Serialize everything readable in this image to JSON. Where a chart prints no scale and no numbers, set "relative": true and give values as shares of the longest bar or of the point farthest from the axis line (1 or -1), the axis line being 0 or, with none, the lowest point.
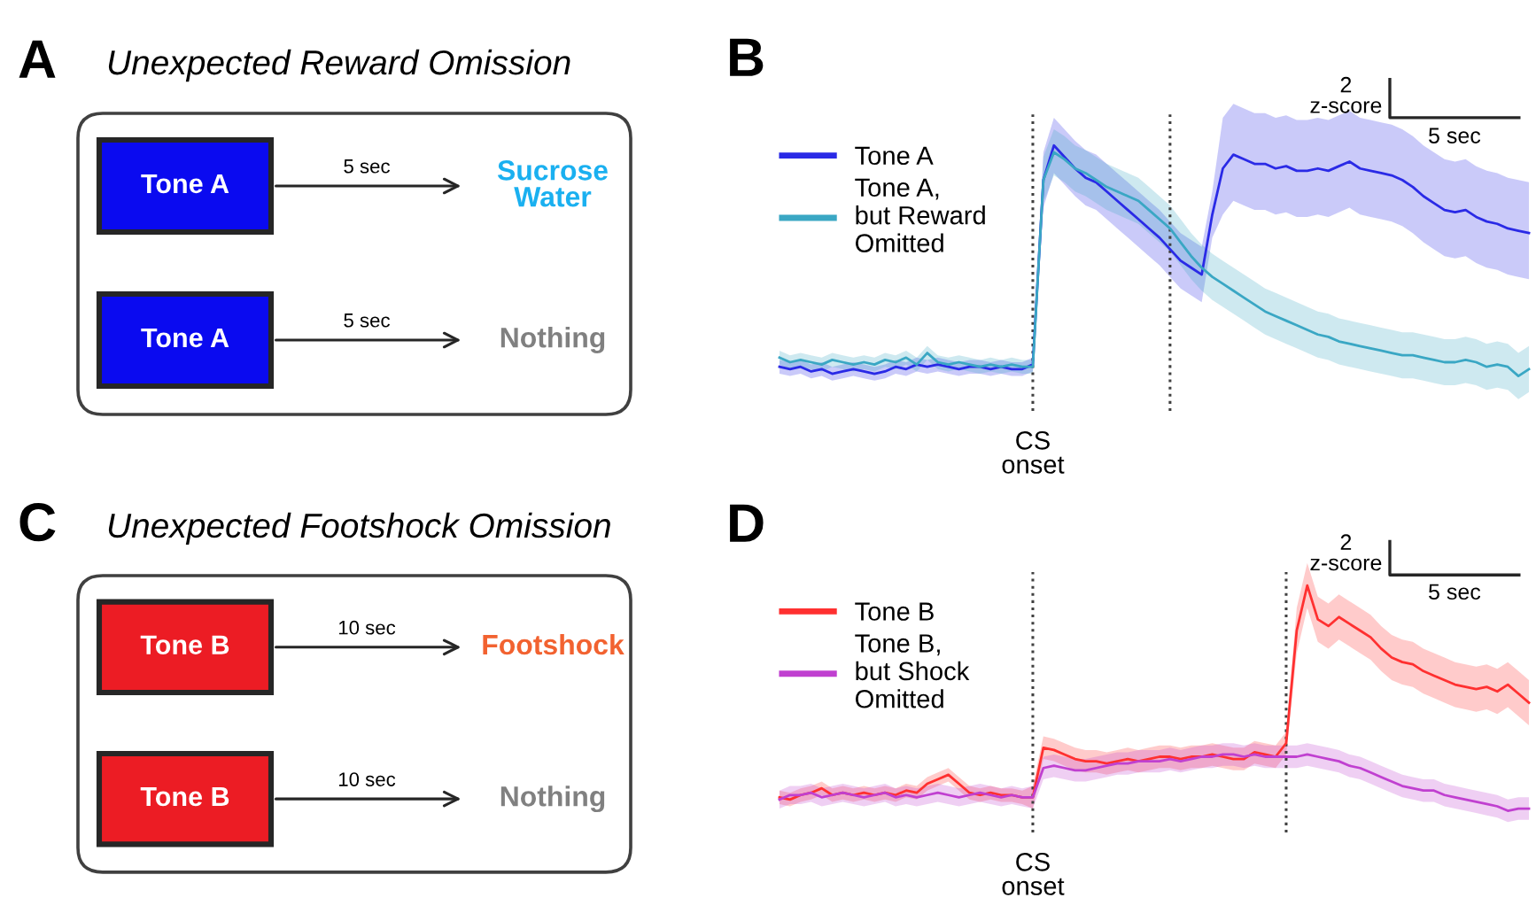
{
  "chart_data": [
    {
      "type": "other",
      "title": "A",
      "subtitle": "Unexpected Reward Omission",
      "annotations": [
        "Tone A",
        "5 sec",
        "Sucrose Water",
        "Tone A",
        "5 sec",
        "Nothing"
      ],
      "colors": [
        "#0a0af0",
        "#1ab0f0",
        "#0a0af0",
        "#808080"
      ]
    },
    {
      "type": "line",
      "title": "B",
      "relative": true,
      "legend": "top left",
      "categories": [
        null,
        null,
        null,
        null,
        null,
        null,
        null,
        null,
        null,
        null,
        null,
        null,
        null,
        null,
        null,
        null,
        null,
        null,
        null,
        null,
        null,
        null,
        null,
        null,
        null,
        null,
        null,
        null,
        null,
        null,
        null,
        null,
        null,
        null,
        null,
        null,
        null,
        null,
        null,
        null,
        null,
        null,
        null,
        null,
        null,
        null,
        null,
        null,
        null,
        null,
        null,
        null,
        null,
        null,
        null,
        null,
        null,
        null,
        null,
        null,
        null,
        null,
        null,
        null,
        null,
        null,
        null,
        null,
        null,
        null,
        null,
        null
      ],
      "series": [
        {
          "name": "Tone A",
          "color": "#2a2ae6",
          "values": [
            0.04,
            0.03,
            0.04,
            0.02,
            0.03,
            0.01,
            0.02,
            0.03,
            0.02,
            0.01,
            0.02,
            0.04,
            0.03,
            0.05,
            0.04,
            0.05,
            0.04,
            0.03,
            0.04,
            0.04,
            0.03,
            0.04,
            0.03,
            0.03,
            0.05,
            0.85,
            1.0,
            0.95,
            0.9,
            0.86,
            0.84,
            0.8,
            0.76,
            0.72,
            0.68,
            0.64,
            0.6,
            0.55,
            0.5,
            0.47,
            0.44,
            0.7,
            0.9,
            0.96,
            0.94,
            0.92,
            0.92,
            0.9,
            0.91,
            0.89,
            0.89,
            0.9,
            0.89,
            0.91,
            0.93,
            0.9,
            0.89,
            0.88,
            0.87,
            0.85,
            0.82,
            0.78,
            0.75,
            0.72,
            0.71,
            0.72,
            0.69,
            0.67,
            0.66,
            0.64,
            0.63,
            0.62
          ],
          "lower": [
            0.01,
            0.0,
            0.01,
            -0.01,
            0.0,
            -0.02,
            -0.01,
            0.0,
            -0.01,
            -0.02,
            -0.01,
            0.01,
            0.0,
            0.02,
            0.01,
            0.02,
            0.01,
            0.0,
            0.01,
            0.01,
            0.0,
            0.01,
            0.0,
            0.0,
            0.02,
            0.73,
            0.88,
            0.83,
            0.78,
            0.74,
            0.72,
            0.68,
            0.64,
            0.6,
            0.56,
            0.52,
            0.48,
            0.43,
            0.38,
            0.35,
            0.32,
            0.6,
            0.7,
            0.76,
            0.74,
            0.72,
            0.72,
            0.7,
            0.71,
            0.69,
            0.69,
            0.7,
            0.69,
            0.71,
            0.73,
            0.7,
            0.69,
            0.68,
            0.67,
            0.65,
            0.62,
            0.58,
            0.55,
            0.52,
            0.51,
            0.52,
            0.49,
            0.47,
            0.46,
            0.44,
            0.43,
            0.42
          ],
          "upper": [
            0.07,
            0.06,
            0.07,
            0.05,
            0.06,
            0.04,
            0.05,
            0.06,
            0.05,
            0.04,
            0.05,
            0.07,
            0.06,
            0.08,
            0.07,
            0.08,
            0.07,
            0.06,
            0.07,
            0.07,
            0.06,
            0.07,
            0.06,
            0.06,
            0.08,
            0.97,
            1.12,
            1.07,
            1.02,
            0.98,
            0.96,
            0.92,
            0.88,
            0.84,
            0.8,
            0.76,
            0.72,
            0.67,
            0.62,
            0.59,
            0.56,
            0.8,
            1.12,
            1.18,
            1.16,
            1.14,
            1.14,
            1.12,
            1.13,
            1.11,
            1.11,
            1.12,
            1.11,
            1.13,
            1.15,
            1.12,
            1.11,
            1.1,
            1.09,
            1.07,
            1.04,
            1.0,
            0.97,
            0.94,
            0.93,
            0.94,
            0.91,
            0.89,
            0.88,
            0.86,
            0.85,
            0.84
          ]
        },
        {
          "name": "Tone A, but Reward Omitted",
          "color": "#3aa7c4",
          "values": [
            0.08,
            0.06,
            0.07,
            0.06,
            0.05,
            0.07,
            0.06,
            0.05,
            0.06,
            0.05,
            0.07,
            0.06,
            0.08,
            0.05,
            0.1,
            0.06,
            0.05,
            0.06,
            0.05,
            0.04,
            0.05,
            0.04,
            0.05,
            0.04,
            0.04,
            0.85,
            0.97,
            0.94,
            0.9,
            0.88,
            0.85,
            0.82,
            0.8,
            0.78,
            0.76,
            0.72,
            0.68,
            0.64,
            0.58,
            0.52,
            0.47,
            0.43,
            0.4,
            0.37,
            0.34,
            0.31,
            0.28,
            0.26,
            0.24,
            0.22,
            0.2,
            0.18,
            0.17,
            0.15,
            0.14,
            0.13,
            0.12,
            0.11,
            0.1,
            0.09,
            0.09,
            0.08,
            0.07,
            0.06,
            0.06,
            0.07,
            0.06,
            0.04,
            0.05,
            0.04,
            0.0,
            0.03
          ],
          "lower": [
            0.05,
            0.03,
            0.04,
            0.03,
            0.02,
            0.04,
            0.03,
            0.02,
            0.03,
            0.02,
            0.04,
            0.03,
            0.05,
            0.02,
            0.07,
            0.03,
            0.02,
            0.03,
            0.02,
            0.01,
            0.02,
            0.01,
            0.02,
            0.01,
            0.01,
            0.75,
            0.87,
            0.84,
            0.8,
            0.78,
            0.75,
            0.72,
            0.7,
            0.68,
            0.66,
            0.62,
            0.58,
            0.54,
            0.48,
            0.42,
            0.37,
            0.33,
            0.3,
            0.27,
            0.24,
            0.21,
            0.18,
            0.16,
            0.14,
            0.12,
            0.1,
            0.08,
            0.07,
            0.05,
            0.04,
            0.03,
            0.02,
            0.01,
            0.0,
            -0.01,
            -0.01,
            -0.02,
            -0.03,
            -0.04,
            -0.04,
            -0.03,
            -0.04,
            -0.06,
            -0.05,
            -0.06,
            -0.1,
            -0.07
          ],
          "upper": [
            0.11,
            0.09,
            0.1,
            0.09,
            0.08,
            0.1,
            0.09,
            0.08,
            0.09,
            0.08,
            0.1,
            0.09,
            0.11,
            0.08,
            0.13,
            0.09,
            0.08,
            0.09,
            0.08,
            0.07,
            0.08,
            0.07,
            0.08,
            0.07,
            0.07,
            0.95,
            1.07,
            1.04,
            1.0,
            0.98,
            0.95,
            0.92,
            0.9,
            0.88,
            0.86,
            0.82,
            0.78,
            0.74,
            0.68,
            0.62,
            0.57,
            0.53,
            0.5,
            0.47,
            0.44,
            0.41,
            0.38,
            0.36,
            0.34,
            0.32,
            0.3,
            0.28,
            0.27,
            0.25,
            0.24,
            0.23,
            0.22,
            0.21,
            0.2,
            0.19,
            0.19,
            0.18,
            0.17,
            0.16,
            0.16,
            0.17,
            0.16,
            0.14,
            0.15,
            0.14,
            0.1,
            0.13
          ]
        }
      ],
      "annotations": [
        "CS onset",
        "2 z-score",
        "5 sec"
      ]
    },
    {
      "type": "other",
      "title": "C",
      "subtitle": "Unexpected Footshock Omission",
      "annotations": [
        "Tone B",
        "10 sec",
        "Footshock",
        "Tone B",
        "10 sec",
        "Nothing"
      ],
      "colors": [
        "#ec1c24",
        "#f26230",
        "#ec1c24",
        "#808080"
      ]
    },
    {
      "type": "line",
      "title": "D",
      "relative": true,
      "legend": "top left",
      "categories": [
        null,
        null,
        null,
        null,
        null,
        null,
        null,
        null,
        null,
        null,
        null,
        null,
        null,
        null,
        null,
        null,
        null,
        null,
        null,
        null,
        null,
        null,
        null,
        null,
        null,
        null,
        null,
        null,
        null,
        null,
        null,
        null,
        null,
        null,
        null,
        null,
        null,
        null,
        null,
        null,
        null,
        null,
        null,
        null,
        null,
        null,
        null,
        null,
        null,
        null,
        null,
        null,
        null,
        null,
        null,
        null,
        null,
        null,
        null,
        null,
        null,
        null,
        null,
        null,
        null,
        null,
        null,
        null,
        null,
        null,
        null,
        null
      ],
      "series": [
        {
          "name": "Tone B",
          "color": "#ff3030",
          "values": [
            0.06,
            0.05,
            0.07,
            0.08,
            0.1,
            0.07,
            0.08,
            0.07,
            0.08,
            0.07,
            0.08,
            0.07,
            0.09,
            0.08,
            0.12,
            0.14,
            0.16,
            0.12,
            0.08,
            0.07,
            0.08,
            0.07,
            0.07,
            0.06,
            0.06,
            0.28,
            0.27,
            0.25,
            0.23,
            0.22,
            0.22,
            0.21,
            0.22,
            0.23,
            0.22,
            0.23,
            0.24,
            0.24,
            0.23,
            0.24,
            0.24,
            0.25,
            0.24,
            0.23,
            0.23,
            0.26,
            0.25,
            0.24,
            0.3,
            0.8,
            1.0,
            0.85,
            0.82,
            0.86,
            0.83,
            0.8,
            0.77,
            0.72,
            0.68,
            0.66,
            0.65,
            0.62,
            0.6,
            0.58,
            0.56,
            0.55,
            0.54,
            0.55,
            0.53,
            0.56,
            0.52,
            0.48
          ],
          "lower": [
            0.03,
            0.02,
            0.04,
            0.05,
            0.07,
            0.04,
            0.05,
            0.04,
            0.05,
            0.04,
            0.05,
            0.04,
            0.06,
            0.05,
            0.09,
            0.11,
            0.13,
            0.09,
            0.05,
            0.04,
            0.05,
            0.04,
            0.04,
            0.03,
            0.01,
            0.23,
            0.22,
            0.2,
            0.18,
            0.17,
            0.17,
            0.16,
            0.17,
            0.18,
            0.17,
            0.18,
            0.19,
            0.19,
            0.18,
            0.19,
            0.19,
            0.2,
            0.19,
            0.18,
            0.18,
            0.21,
            0.2,
            0.19,
            0.25,
            0.7,
            0.9,
            0.75,
            0.72,
            0.76,
            0.73,
            0.7,
            0.67,
            0.62,
            0.58,
            0.56,
            0.55,
            0.52,
            0.5,
            0.48,
            0.46,
            0.45,
            0.44,
            0.45,
            0.43,
            0.46,
            0.42,
            0.38
          ],
          "upper": [
            0.09,
            0.08,
            0.1,
            0.11,
            0.13,
            0.1,
            0.11,
            0.1,
            0.11,
            0.1,
            0.11,
            0.1,
            0.12,
            0.11,
            0.15,
            0.17,
            0.19,
            0.15,
            0.11,
            0.1,
            0.11,
            0.1,
            0.1,
            0.09,
            0.11,
            0.33,
            0.32,
            0.3,
            0.28,
            0.27,
            0.27,
            0.26,
            0.27,
            0.28,
            0.27,
            0.28,
            0.29,
            0.29,
            0.28,
            0.29,
            0.29,
            0.3,
            0.29,
            0.28,
            0.28,
            0.31,
            0.3,
            0.29,
            0.35,
            0.9,
            1.1,
            0.95,
            0.92,
            0.96,
            0.93,
            0.9,
            0.87,
            0.82,
            0.78,
            0.76,
            0.75,
            0.72,
            0.7,
            0.68,
            0.66,
            0.65,
            0.64,
            0.65,
            0.63,
            0.66,
            0.62,
            0.58
          ]
        },
        {
          "name": "Tone B, but Shock Omitted",
          "color": "#c040d0",
          "values": [
            0.05,
            0.07,
            0.07,
            0.08,
            0.06,
            0.07,
            0.08,
            0.07,
            0.06,
            0.07,
            0.08,
            0.06,
            0.07,
            0.06,
            0.07,
            0.08,
            0.07,
            0.06,
            0.07,
            0.08,
            0.07,
            0.06,
            0.07,
            0.06,
            0.06,
            0.19,
            0.2,
            0.19,
            0.18,
            0.18,
            0.19,
            0.2,
            0.21,
            0.21,
            0.22,
            0.22,
            0.22,
            0.23,
            0.22,
            0.23,
            0.24,
            0.24,
            0.25,
            0.25,
            0.24,
            0.25,
            0.24,
            0.24,
            0.24,
            0.24,
            0.25,
            0.24,
            0.23,
            0.22,
            0.2,
            0.19,
            0.17,
            0.15,
            0.13,
            0.11,
            0.1,
            0.09,
            0.09,
            0.07,
            0.06,
            0.05,
            0.04,
            0.03,
            0.02,
            0.0,
            0.01,
            0.01
          ],
          "lower": [
            0.01,
            0.03,
            0.03,
            0.04,
            0.02,
            0.03,
            0.04,
            0.03,
            0.02,
            0.03,
            0.04,
            0.02,
            0.03,
            0.02,
            0.03,
            0.04,
            0.03,
            0.02,
            0.03,
            0.04,
            0.03,
            0.02,
            0.03,
            0.02,
            0.01,
            0.14,
            0.15,
            0.14,
            0.13,
            0.13,
            0.14,
            0.15,
            0.16,
            0.16,
            0.17,
            0.17,
            0.17,
            0.18,
            0.17,
            0.18,
            0.19,
            0.19,
            0.2,
            0.2,
            0.19,
            0.2,
            0.19,
            0.19,
            0.19,
            0.19,
            0.2,
            0.19,
            0.18,
            0.17,
            0.15,
            0.14,
            0.12,
            0.1,
            0.08,
            0.06,
            0.05,
            0.04,
            0.04,
            0.02,
            0.01,
            0.0,
            -0.01,
            -0.02,
            -0.03,
            -0.05,
            -0.04,
            -0.04
          ],
          "upper": [
            0.09,
            0.11,
            0.11,
            0.12,
            0.1,
            0.11,
            0.12,
            0.11,
            0.1,
            0.11,
            0.12,
            0.1,
            0.11,
            0.1,
            0.11,
            0.12,
            0.11,
            0.1,
            0.11,
            0.12,
            0.11,
            0.1,
            0.11,
            0.1,
            0.11,
            0.24,
            0.25,
            0.24,
            0.23,
            0.23,
            0.24,
            0.25,
            0.26,
            0.26,
            0.27,
            0.27,
            0.27,
            0.28,
            0.27,
            0.28,
            0.29,
            0.29,
            0.3,
            0.3,
            0.29,
            0.3,
            0.29,
            0.29,
            0.29,
            0.29,
            0.3,
            0.29,
            0.28,
            0.27,
            0.25,
            0.24,
            0.22,
            0.2,
            0.18,
            0.16,
            0.15,
            0.14,
            0.14,
            0.12,
            0.11,
            0.1,
            0.09,
            0.08,
            0.07,
            0.05,
            0.06,
            0.06
          ]
        }
      ],
      "annotations": [
        "CS onset",
        "2 z-score",
        "5 sec"
      ]
    }
  ]
}
